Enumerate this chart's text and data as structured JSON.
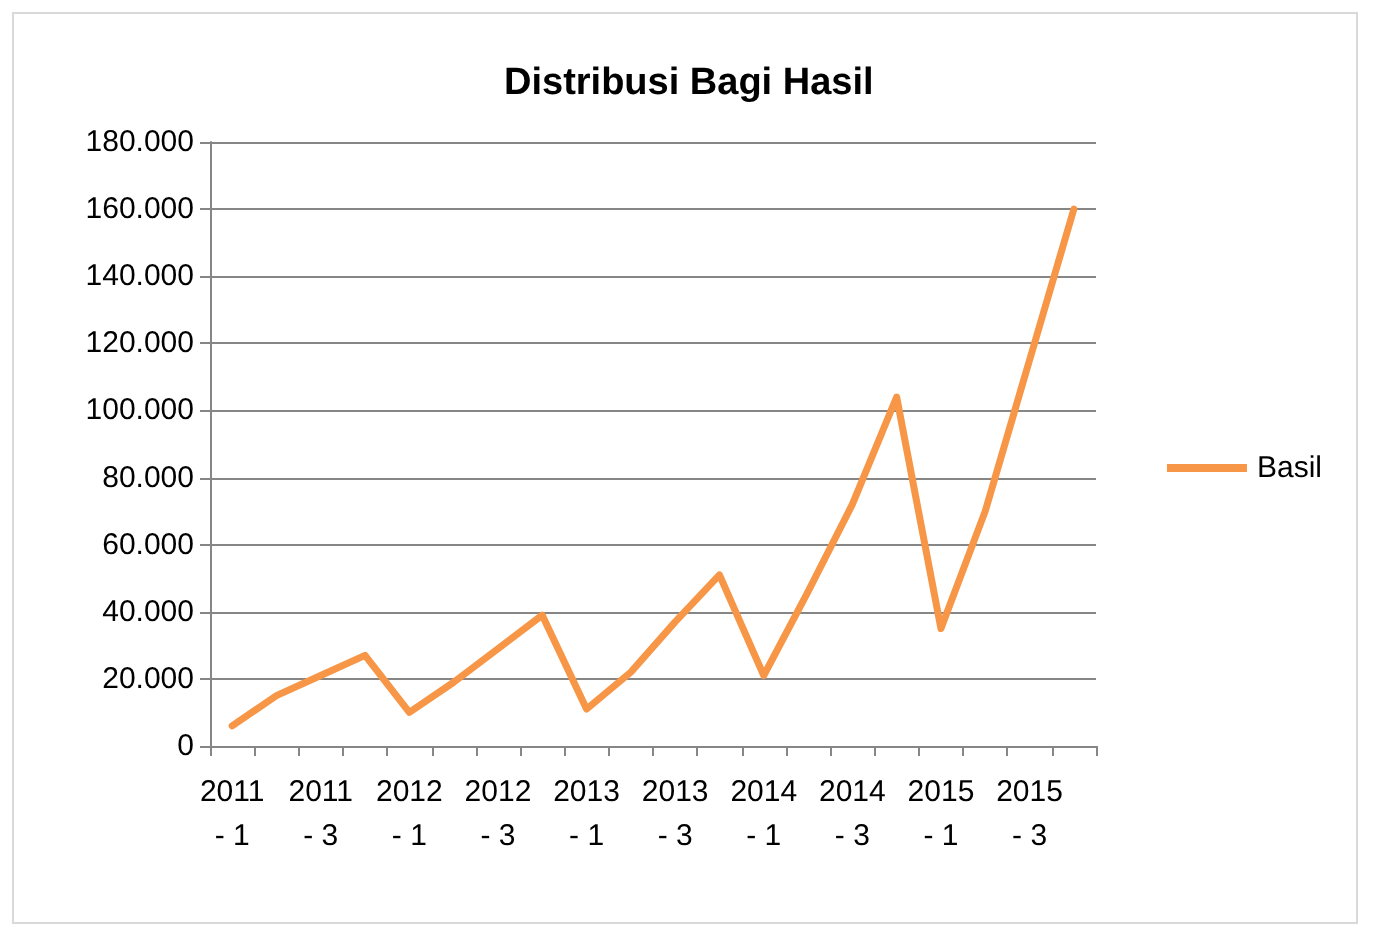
{
  "chart_data": {
    "type": "line",
    "title": "Distribusi Bagi Hasil",
    "categories": [
      "2011 - 1",
      null,
      "2011 - 3",
      null,
      "2012 - 1",
      null,
      "2012 - 3",
      null,
      "2013 - 1",
      null,
      "2013 - 3",
      null,
      "2014 - 1",
      null,
      "2014 - 3",
      null,
      "2015 - 1",
      null,
      "2015 - 3",
      null
    ],
    "series": [
      {
        "name": "Basil",
        "color": "#f79646",
        "values": [
          6000,
          15000,
          21000,
          27000,
          10000,
          19000,
          29000,
          39000,
          11000,
          22000,
          37000,
          51000,
          21000,
          46000,
          72000,
          104000,
          35000,
          70000,
          115000,
          160000
        ]
      }
    ],
    "ylim": [
      0,
      180000
    ],
    "yticks": [
      {
        "value": 0,
        "label": "0"
      },
      {
        "value": 20000,
        "label": "20.000"
      },
      {
        "value": 40000,
        "label": "40.000"
      },
      {
        "value": 60000,
        "label": "60.000"
      },
      {
        "value": 80000,
        "label": "80.000"
      },
      {
        "value": 100000,
        "label": "100.000"
      },
      {
        "value": 120000,
        "label": "120.000"
      },
      {
        "value": 140000,
        "label": "140.000"
      },
      {
        "value": 160000,
        "label": "160.000"
      },
      {
        "value": 180000,
        "label": "180.000"
      }
    ],
    "grid": "y",
    "legend": "right",
    "marker": "none",
    "line_style": "solid"
  }
}
